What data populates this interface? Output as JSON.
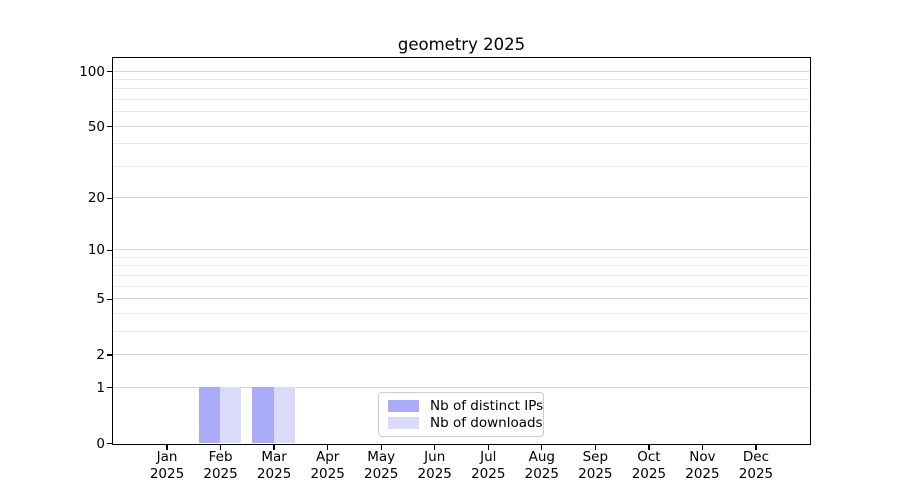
{
  "figure": {
    "background": "#ffffff",
    "text_color": "#000000",
    "spine_color": "#000000"
  },
  "chart_data": {
    "type": "bar",
    "title": "geometry 2025",
    "categories": [
      "Jan 2025",
      "Feb 2025",
      "Mar 2025",
      "Apr 2025",
      "May 2025",
      "Jun 2025",
      "Jul 2025",
      "Aug 2025",
      "Sep 2025",
      "Oct 2025",
      "Nov 2025",
      "Dec 2025"
    ],
    "x_axis": {
      "months": [
        "Jan",
        "Feb",
        "Mar",
        "Apr",
        "May",
        "Jun",
        "Jul",
        "Aug",
        "Sep",
        "Oct",
        "Nov",
        "Dec"
      ],
      "year": "2025"
    },
    "series": [
      {
        "name": "Nb of distinct IPs",
        "color": "#aaacf9",
        "values": [
          0,
          1,
          1,
          0,
          0,
          0,
          0,
          0,
          0,
          0,
          0,
          0
        ]
      },
      {
        "name": "Nb of downloads",
        "color": "#dbdbf9",
        "values": [
          0,
          1,
          1,
          0,
          0,
          0,
          0,
          0,
          0,
          0,
          0,
          0
        ]
      }
    ],
    "y_axis": {
      "scale": "log1p",
      "ticks": [
        100,
        50,
        20,
        10,
        5,
        2,
        1,
        0
      ],
      "minor_ticks": [
        90,
        80,
        70,
        60,
        40,
        30,
        9,
        8,
        7,
        6,
        4,
        3
      ],
      "ylim": [
        0,
        118
      ]
    },
    "grid": {
      "enabled": true,
      "major_color": "#d4d4d4",
      "minor_color": "#e9e9e9"
    },
    "legend": {
      "position": "lower-center",
      "border_color": "#cccccc",
      "background": "#ffffff"
    }
  }
}
